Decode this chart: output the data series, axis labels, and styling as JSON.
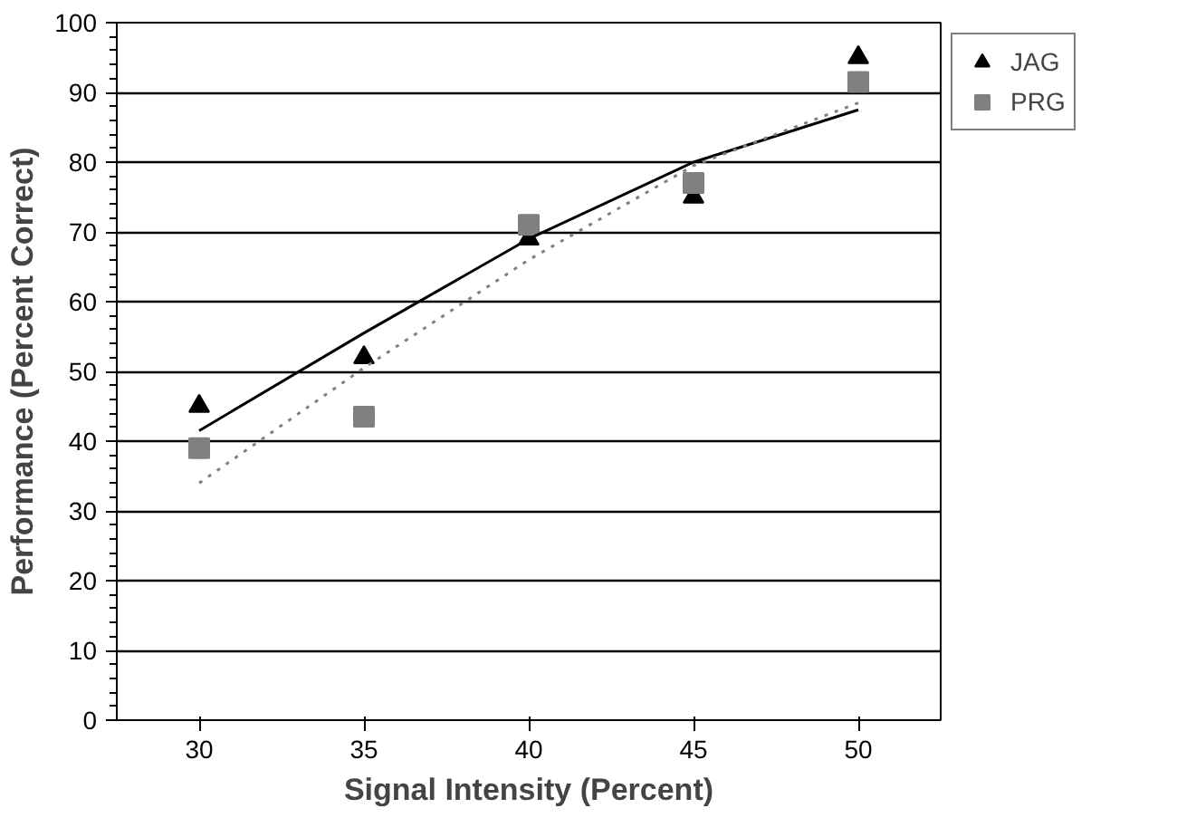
{
  "chart_data": {
    "type": "scatter",
    "xlabel": "Signal Intensity (Percent)",
    "ylabel": "Performance (Percent Correct)",
    "x": [
      30,
      35,
      40,
      45,
      50
    ],
    "series": [
      {
        "name": "JAG",
        "color": "#000000",
        "marker": "triangle",
        "values": [
          45,
          52,
          69,
          75,
          95
        ]
      },
      {
        "name": "PRG",
        "color": "#808080",
        "marker": "square",
        "values": [
          39,
          43.5,
          71,
          77,
          91.5
        ]
      },
      {
        "type": "line",
        "color": "#000000",
        "line_style": "solid",
        "x": [
          30,
          35,
          40,
          45,
          50
        ],
        "values": [
          41.5,
          55.5,
          69,
          80,
          87.5
        ]
      },
      {
        "type": "line",
        "color": "#808080",
        "line_style": "dotted",
        "x": [
          30,
          35,
          40,
          45,
          50
        ],
        "values": [
          34,
          50.5,
          66,
          79.5,
          88.5
        ]
      }
    ],
    "xlim": [
      27.5,
      52.5
    ],
    "xticks": [
      30,
      35,
      40,
      45,
      50
    ],
    "ylim": [
      0,
      100
    ],
    "yticks": [
      0,
      10,
      20,
      30,
      40,
      50,
      60,
      70,
      80,
      90,
      100
    ],
    "grid": "y",
    "legend": "top right"
  }
}
